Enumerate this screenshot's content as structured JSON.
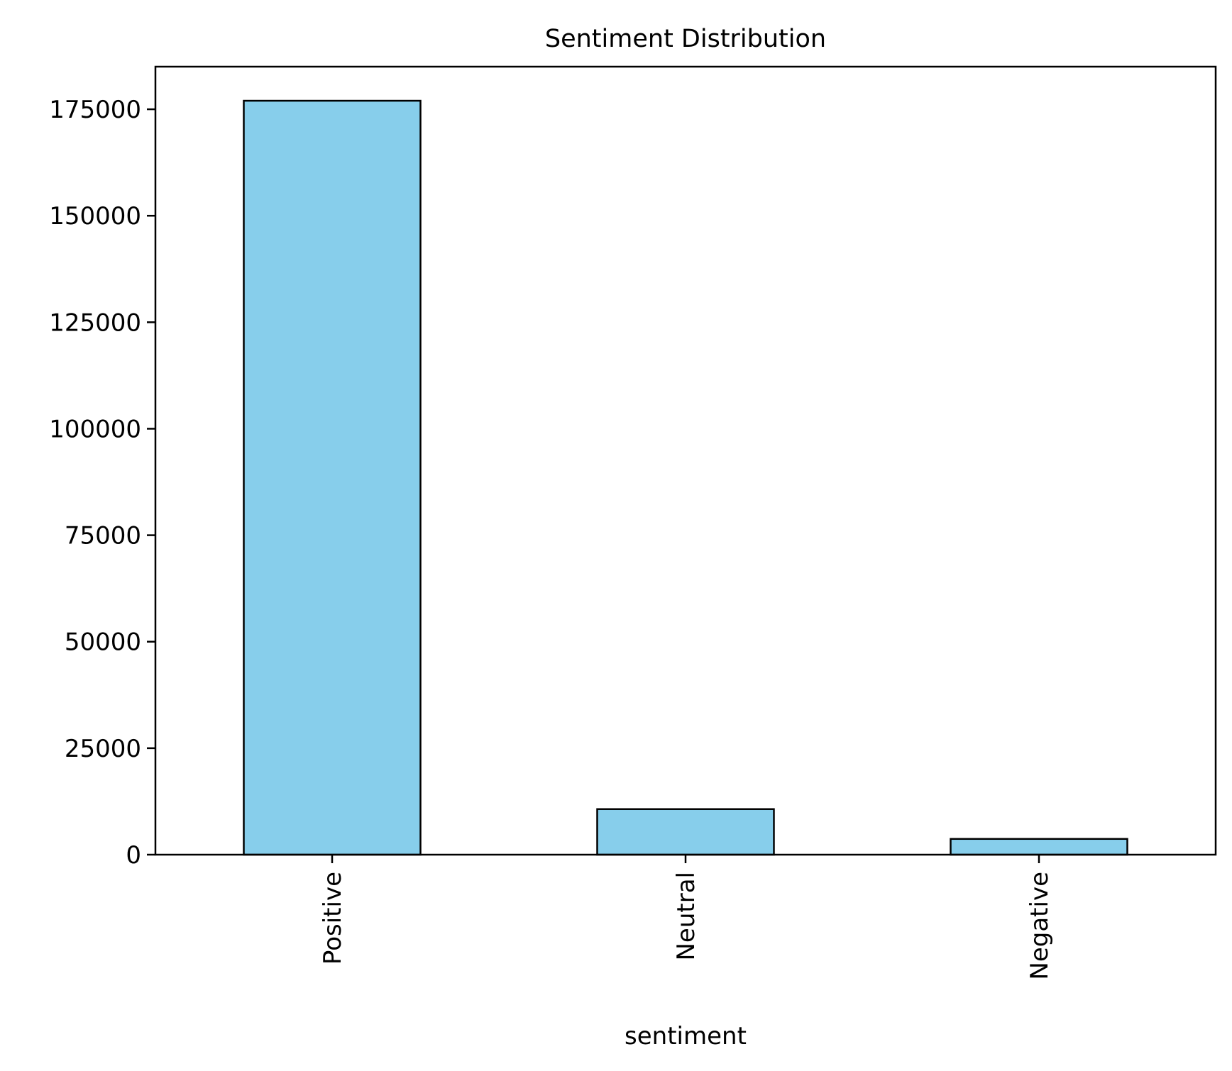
{
  "chart_data": {
    "type": "bar",
    "title": "Sentiment Distribution",
    "xlabel": "sentiment",
    "ylabel": "",
    "categories": [
      "Positive",
      "Neutral",
      "Negative"
    ],
    "values": [
      177000,
      10700,
      3700
    ],
    "ylim": [
      0,
      185000
    ],
    "yticks": [
      0,
      25000,
      50000,
      75000,
      100000,
      125000,
      150000,
      175000
    ],
    "ytick_labels": [
      "0",
      "25000",
      "50000",
      "75000",
      "100000",
      "125000",
      "150000",
      "175000"
    ],
    "xtick_rotation": "vertical",
    "grid": false,
    "legend": "none",
    "colors": {
      "bar_fill": "#87CEEB",
      "bar_edge": "#000000",
      "axes": "#000000",
      "background": "#ffffff"
    }
  }
}
